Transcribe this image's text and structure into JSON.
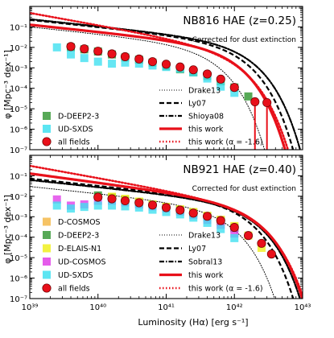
{
  "figure": {
    "xlabel": "Luminosity (Hα) [erg s⁻¹]",
    "ylabel": "φ [Mpc⁻³ dex⁻¹]"
  },
  "chart_data": [
    {
      "type": "scatter",
      "title": "NB816 HAE (z=0.25)",
      "subtitle": "Corrected for dust extinction",
      "xlabel": "",
      "ylabel": "φ [Mpc⁻³ dex⁻¹]",
      "x_scale": "log",
      "y_scale": "log",
      "xlim": [
        1e+39,
        1e+43
      ],
      "ylim": [
        1e-07,
        1
      ],
      "x_tick_labels": [],
      "y_tick_labels": [
        "10⁻⁷",
        "10⁻⁶",
        "10⁻⁵",
        "10⁻⁴",
        "10⁻³",
        "10⁻²",
        "10⁻¹"
      ],
      "legend_placement": "lower-left and lower-right",
      "legend": [
        {
          "label": "D-DEEP2-3",
          "kind": "square",
          "color": "#3a9a3a"
        },
        {
          "label": "UD-SXDS",
          "kind": "square",
          "color": "#40e0f0"
        },
        {
          "label": "all fields",
          "kind": "circle",
          "color": "#e8101a"
        },
        {
          "label": "Drake13",
          "kind": "line",
          "style": "dotted",
          "color": "#000000"
        },
        {
          "label": "Ly07",
          "kind": "line",
          "style": "dashed",
          "color": "#000000"
        },
        {
          "label": "Shioya08",
          "kind": "line",
          "style": "dashdot",
          "color": "#000000"
        },
        {
          "label": "this work",
          "kind": "line",
          "style": "solid",
          "color": "#e8101a"
        },
        {
          "label": "this work (α = -1.6)",
          "kind": "line",
          "style": "dotted-thick",
          "color": "#e8101a"
        }
      ],
      "series": [
        {
          "name": "D-DEEP2-3",
          "marker": "square",
          "color": "#3a9a3a",
          "points": [
            [
              4e+39,
              0.01
            ],
            [
              6.3e+39,
              0.008
            ],
            [
              1e+40,
              0.0063
            ],
            [
              1.6e+40,
              0.0045
            ],
            [
              2.5e+40,
              0.0032
            ],
            [
              4e+40,
              0.0025
            ],
            [
              6.3e+40,
              0.0018
            ],
            [
              1e+41,
              0.0012
            ],
            [
              1.6e+41,
              0.00085
            ],
            [
              2.5e+41,
              0.0006
            ],
            [
              4e+41,
              0.0004
            ],
            [
              6.3e+41,
              0.00022
            ],
            [
              1e+42,
              0.00011
            ],
            [
              1.6e+42,
              4e-05
            ]
          ]
        },
        {
          "name": "UD-SXDS",
          "marker": "square",
          "color": "#40e0f0",
          "points": [
            [
              2.5e+39,
              0.01
            ],
            [
              4e+39,
              0.0045
            ],
            [
              6.3e+39,
              0.003
            ],
            [
              1e+40,
              0.002
            ],
            [
              1.6e+40,
              0.0016
            ],
            [
              2.5e+40,
              0.0018
            ],
            [
              4e+40,
              0.0016
            ],
            [
              6.3e+40,
              0.0013
            ],
            [
              1e+41,
              0.0011
            ],
            [
              1.6e+41,
              0.0009
            ],
            [
              2.5e+41,
              0.0006
            ],
            [
              4e+41,
              0.0003
            ],
            [
              6.3e+41,
              0.00012
            ],
            [
              1e+42,
              6e-05
            ]
          ]
        },
        {
          "name": "all fields",
          "marker": "circle",
          "color": "#e8101a",
          "points": [
            [
              4e+39,
              0.011
            ],
            [
              6.3e+39,
              0.0085
            ],
            [
              1e+40,
              0.0065
            ],
            [
              1.6e+40,
              0.0048
            ],
            [
              2.5e+40,
              0.0035
            ],
            [
              4e+40,
              0.0027
            ],
            [
              6.3e+40,
              0.002
            ],
            [
              1e+41,
              0.0015
            ],
            [
              1.6e+41,
              0.0011
            ],
            [
              2.5e+41,
              0.0008
            ],
            [
              4e+41,
              0.0005
            ],
            [
              6.3e+41,
              0.00028
            ],
            [
              1e+42,
              0.00011
            ],
            [
              2e+42,
              2.2e-05
            ],
            [
              3e+42,
              2e-05
            ]
          ],
          "lower_limit_arrows_x": [
            2e+42,
            3e+42
          ]
        }
      ],
      "curves": [
        {
          "name": "this work",
          "style": "solid",
          "color": "#e8101a",
          "phi_star": 0.0063,
          "L_star": 5e+41,
          "alpha": -1.35
        },
        {
          "name": "this work (α = -1.6)",
          "style": "dotted-thick",
          "color": "#e8101a",
          "phi_star": 0.0045,
          "L_star": 6e+41,
          "alpha": -1.6
        },
        {
          "name": "Ly07",
          "style": "dashed",
          "color": "#000000",
          "phi_star": 0.01,
          "L_star": 6.3e+41,
          "alpha": -1.35
        },
        {
          "name": "Shioya08",
          "style": "dashdot",
          "color": "#000000",
          "phi_star": 0.01,
          "L_star": 8e+41,
          "alpha": -1.35
        },
        {
          "name": "Drake13",
          "style": "dotted",
          "color": "#000000",
          "phi_star": 0.0063,
          "L_star": 2.5e+41,
          "alpha": -1.35
        }
      ]
    },
    {
      "type": "scatter",
      "title": "NB921 HAE (z=0.40)",
      "subtitle": "Corrected for dust extinction",
      "xlabel": "Luminosity (Hα) [erg s⁻¹]",
      "ylabel": "φ [Mpc⁻³ dex⁻¹]",
      "x_scale": "log",
      "y_scale": "log",
      "xlim": [
        1e+39,
        1e+43
      ],
      "ylim": [
        1e-07,
        1
      ],
      "x_tick_labels": [
        "10³⁹",
        "10⁴⁰",
        "10⁴¹",
        "10⁴²",
        "10⁴³"
      ],
      "y_tick_labels": [
        "10⁻⁷",
        "10⁻⁶",
        "10⁻⁵",
        "10⁻⁴",
        "10⁻³",
        "10⁻²",
        "10⁻¹"
      ],
      "legend_placement": "lower-left and lower-right",
      "legend": [
        {
          "label": "D-COSMOS",
          "kind": "square",
          "color": "#f5b84a"
        },
        {
          "label": "D-DEEP2-3",
          "kind": "square",
          "color": "#3a9a3a"
        },
        {
          "label": "D-ELAIS-N1",
          "kind": "square",
          "color": "#f0f020"
        },
        {
          "label": "UD-COSMOS",
          "kind": "square",
          "color": "#e040e8"
        },
        {
          "label": "UD-SXDS",
          "kind": "square",
          "color": "#40e0f0"
        },
        {
          "label": "all fields",
          "kind": "circle",
          "color": "#e8101a"
        },
        {
          "label": "Drake13",
          "kind": "line",
          "style": "dotted",
          "color": "#000000"
        },
        {
          "label": "Ly07",
          "kind": "line",
          "style": "dashed",
          "color": "#000000"
        },
        {
          "label": "Sobral13",
          "kind": "line",
          "style": "dashdot",
          "color": "#000000"
        },
        {
          "label": "this work",
          "kind": "line",
          "style": "solid",
          "color": "#e8101a"
        },
        {
          "label": "this work (α = -1.6)",
          "kind": "line",
          "style": "dotted-thick",
          "color": "#e8101a"
        }
      ],
      "series": [
        {
          "name": "D-COSMOS",
          "marker": "square",
          "color": "#f5b84a",
          "points": [
            [
              1.6e+40,
              0.009
            ],
            [
              2.5e+40,
              0.007
            ],
            [
              4e+40,
              0.0052
            ],
            [
              6.3e+40,
              0.0038
            ],
            [
              1e+41,
              0.003
            ],
            [
              1.6e+41,
              0.0022
            ],
            [
              2.5e+41,
              0.0016
            ],
            [
              4e+41,
              0.0011
            ],
            [
              6.3e+41,
              0.0007
            ],
            [
              1e+42,
              0.0003
            ]
          ]
        },
        {
          "name": "D-DEEP2-3",
          "marker": "square",
          "color": "#3a9a3a",
          "points": [
            [
              1e+40,
              0.011
            ],
            [
              1.6e+40,
              0.0085
            ],
            [
              2.5e+40,
              0.0065
            ],
            [
              4e+40,
              0.005
            ],
            [
              6.3e+40,
              0.0038
            ],
            [
              1e+41,
              0.0028
            ],
            [
              1.6e+41,
              0.0021
            ],
            [
              2.5e+41,
              0.0015
            ],
            [
              4e+41,
              0.001
            ],
            [
              6.3e+41,
              0.0006
            ],
            [
              1e+42,
              0.00028
            ]
          ]
        },
        {
          "name": "D-ELAIS-N1",
          "marker": "square",
          "color": "#f0f020",
          "points": [
            [
              1.6e+40,
              0.0095
            ],
            [
              2.5e+40,
              0.0075
            ],
            [
              4e+40,
              0.0055
            ],
            [
              6.3e+40,
              0.004
            ],
            [
              1e+41,
              0.003
            ],
            [
              1.6e+41,
              0.0023
            ],
            [
              2.5e+41,
              0.0017
            ],
            [
              4e+41,
              0.0011
            ],
            [
              6.3e+41,
              0.0007
            ],
            [
              1e+42,
              0.00035
            ],
            [
              1.6e+42,
              0.00012
            ],
            [
              2.5e+42,
              3e-05
            ]
          ]
        },
        {
          "name": "UD-COSMOS",
          "marker": "square",
          "color": "#e040e8",
          "points": [
            [
              2.5e+39,
              0.007
            ],
            [
              4e+39,
              0.0035
            ],
            [
              6.3e+39,
              0.004
            ],
            [
              1e+40,
              0.006
            ],
            [
              1.6e+40,
              0.006
            ],
            [
              2.5e+40,
              0.005
            ],
            [
              4e+40,
              0.004
            ],
            [
              6.3e+40,
              0.0032
            ],
            [
              1e+41,
              0.0025
            ],
            [
              1.6e+41,
              0.0018
            ],
            [
              2.5e+41,
              0.0012
            ],
            [
              4e+41,
              0.0007
            ],
            [
              6.3e+41,
              0.0004
            ],
            [
              1e+42,
              0.00015
            ]
          ]
        },
        {
          "name": "UD-SXDS",
          "marker": "square",
          "color": "#40e0f0",
          "points": [
            [
              2.5e+39,
              0.0035
            ],
            [
              4e+39,
              0.0025
            ],
            [
              6.3e+39,
              0.003
            ],
            [
              1e+40,
              0.0035
            ],
            [
              1.6e+40,
              0.0035
            ],
            [
              2.5e+40,
              0.0032
            ],
            [
              4e+40,
              0.0028
            ],
            [
              6.3e+40,
              0.0022
            ],
            [
              1e+41,
              0.0017
            ],
            [
              1.6e+41,
              0.0013
            ],
            [
              2.5e+41,
              0.0009
            ],
            [
              4e+41,
              0.0005
            ],
            [
              6.3e+41,
              0.00025
            ],
            [
              1e+42,
              9e-05
            ]
          ]
        },
        {
          "name": "all fields",
          "marker": "circle",
          "color": "#e8101a",
          "points": [
            [
              1e+40,
              0.009
            ],
            [
              1.6e+40,
              0.0075
            ],
            [
              2.5e+40,
              0.006
            ],
            [
              4e+40,
              0.0048
            ],
            [
              6.3e+40,
              0.0037
            ],
            [
              1e+41,
              0.0028
            ],
            [
              1.6e+41,
              0.0021
            ],
            [
              2.5e+41,
              0.0015
            ],
            [
              4e+41,
              0.00105
            ],
            [
              6.3e+41,
              0.00065
            ],
            [
              1e+42,
              0.0003
            ],
            [
              1.6e+42,
              0.00012
            ],
            [
              2.5e+42,
              5e-05
            ],
            [
              3.5e+42,
              1.5e-05
            ]
          ]
        }
      ],
      "curves": [
        {
          "name": "this work",
          "style": "solid",
          "color": "#e8101a",
          "phi_star": 0.0025,
          "L_star": 1e+42,
          "alpha": -1.45
        },
        {
          "name": "this work (α = -1.6)",
          "style": "dotted-thick",
          "color": "#e8101a",
          "phi_star": 0.002,
          "L_star": 1.1e+42,
          "alpha": -1.6
        },
        {
          "name": "Ly07",
          "style": "dashed",
          "color": "#000000",
          "phi_star": 0.0032,
          "L_star": 7e+41,
          "alpha": -1.35
        },
        {
          "name": "Sobral13",
          "style": "dashdot",
          "color": "#000000",
          "phi_star": 0.0025,
          "L_star": 9e+41,
          "alpha": -1.35
        },
        {
          "name": "Drake13",
          "style": "dotted",
          "color": "#000000",
          "phi_star": 0.0016,
          "L_star": 4e+41,
          "alpha": -1.35
        }
      ]
    }
  ]
}
